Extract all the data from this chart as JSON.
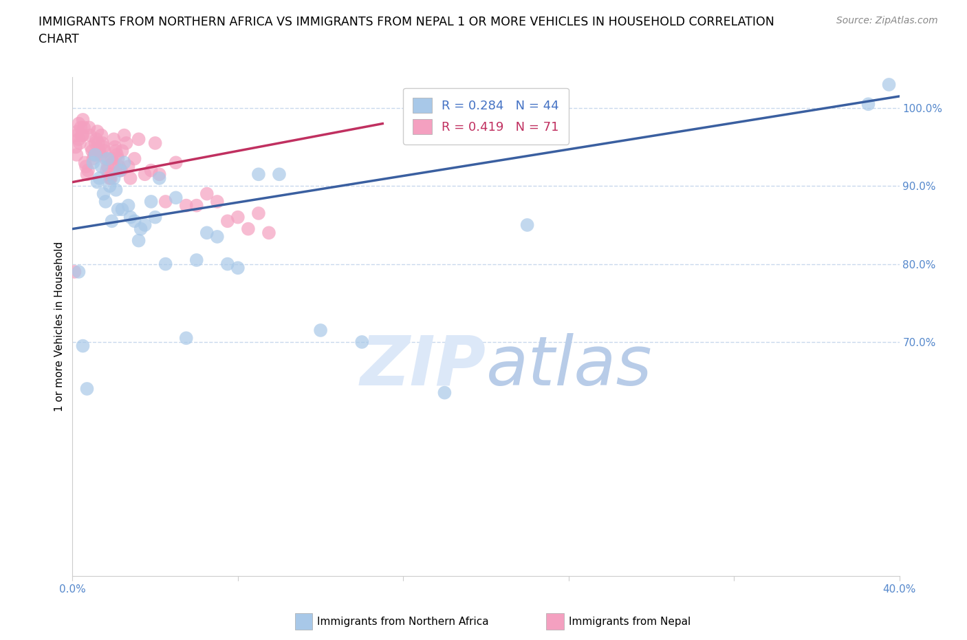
{
  "title_line1": "IMMIGRANTS FROM NORTHERN AFRICA VS IMMIGRANTS FROM NEPAL 1 OR MORE VEHICLES IN HOUSEHOLD CORRELATION",
  "title_line2": "CHART",
  "source": "Source: ZipAtlas.com",
  "ylabel": "1 or more Vehicles in Household",
  "xlim": [
    0.0,
    40.0
  ],
  "ylim": [
    40.0,
    104.0
  ],
  "blue_color": "#a8c8e8",
  "pink_color": "#f4a0c0",
  "blue_line_color": "#3a5fa0",
  "pink_line_color": "#c03060",
  "legend_blue_text_color": "#4472c4",
  "legend_pink_text_color": "#c03060",
  "axis_color": "#5588cc",
  "grid_color": "#c8d8ec",
  "watermark_color": "#dce8f8",
  "title_fontsize": 12.5,
  "source_fontsize": 10,
  "ylabel_fontsize": 11,
  "tick_fontsize": 11,
  "legend_fontsize": 13,
  "blue_scatter_x": [
    0.3,
    0.5,
    0.7,
    1.0,
    1.1,
    1.2,
    1.3,
    1.4,
    1.5,
    1.6,
    1.7,
    1.8,
    2.0,
    2.1,
    2.2,
    2.3,
    2.5,
    2.7,
    2.8,
    3.0,
    3.2,
    3.5,
    3.8,
    4.0,
    4.5,
    5.0,
    5.5,
    6.0,
    6.5,
    7.0,
    7.5,
    8.0,
    9.0,
    10.0,
    12.0,
    14.0,
    18.0,
    22.0,
    38.5,
    39.5,
    2.4,
    3.3,
    4.2,
    1.9
  ],
  "blue_scatter_y": [
    79.0,
    69.5,
    64.0,
    93.0,
    94.0,
    90.5,
    91.0,
    92.5,
    89.0,
    88.0,
    93.5,
    90.0,
    91.0,
    89.5,
    87.0,
    92.0,
    93.0,
    87.5,
    86.0,
    85.5,
    83.0,
    85.0,
    88.0,
    86.0,
    80.0,
    88.5,
    70.5,
    80.5,
    84.0,
    83.5,
    80.0,
    79.5,
    91.5,
    91.5,
    71.5,
    70.0,
    63.5,
    85.0,
    100.5,
    103.0,
    87.0,
    84.5,
    91.0,
    85.5
  ],
  "pink_scatter_x": [
    0.1,
    0.2,
    0.2,
    0.3,
    0.3,
    0.4,
    0.5,
    0.5,
    0.6,
    0.7,
    0.8,
    0.9,
    1.0,
    1.1,
    1.2,
    1.3,
    1.4,
    1.5,
    1.6,
    1.7,
    1.8,
    1.9,
    2.0,
    2.1,
    2.2,
    2.3,
    2.4,
    2.5,
    2.6,
    2.7,
    2.8,
    3.0,
    3.2,
    3.5,
    3.8,
    4.0,
    4.2,
    4.5,
    5.0,
    5.5,
    6.0,
    6.5,
    7.0,
    7.5,
    8.0,
    8.5,
    9.0,
    9.5,
    0.15,
    0.25,
    0.35,
    0.45,
    0.55,
    0.65,
    0.75,
    0.85,
    0.95,
    1.05,
    1.15,
    1.25,
    1.35,
    1.45,
    1.55,
    1.65,
    1.75,
    1.85,
    1.95,
    2.05,
    2.15,
    2.25,
    2.35
  ],
  "pink_scatter_y": [
    79.0,
    94.0,
    96.5,
    96.0,
    98.0,
    97.5,
    98.5,
    96.5,
    93.0,
    91.5,
    97.5,
    95.0,
    93.5,
    95.5,
    97.0,
    94.5,
    96.5,
    95.0,
    93.5,
    92.5,
    91.0,
    93.5,
    96.0,
    94.5,
    93.5,
    92.0,
    94.5,
    96.5,
    95.5,
    92.5,
    91.0,
    93.5,
    96.0,
    91.5,
    92.0,
    95.5,
    91.5,
    88.0,
    93.0,
    87.5,
    87.5,
    89.0,
    88.0,
    85.5,
    86.0,
    84.5,
    86.5,
    84.0,
    95.0,
    97.0,
    95.5,
    96.5,
    97.5,
    92.5,
    92.0,
    96.5,
    94.5,
    94.0,
    96.0,
    95.5,
    94.0,
    95.5,
    94.5,
    92.0,
    91.5,
    91.0,
    93.0,
    95.0,
    94.0,
    92.5,
    92.0
  ],
  "blue_trendline_x": [
    0.0,
    40.0
  ],
  "blue_trendline_y": [
    84.5,
    101.5
  ],
  "pink_trendline_x": [
    0.0,
    15.0
  ],
  "pink_trendline_y": [
    90.5,
    98.0
  ],
  "right_yticks": [
    70.0,
    80.0,
    90.0,
    100.0
  ],
  "right_ytick_labels": [
    "70.0%",
    "80.0%",
    "90.0%",
    "100.0%"
  ],
  "xtick_positions": [
    0.0,
    8.0,
    16.0,
    24.0,
    32.0,
    40.0
  ],
  "xtick_labels": [
    "0.0%",
    "",
    "",
    "",
    "",
    "40.0%"
  ],
  "legend_blue_r": "R = 0.284",
  "legend_blue_n": "N = 44",
  "legend_pink_r": "R = 0.419",
  "legend_pink_n": "N = 71",
  "bottom_label_blue": "Immigrants from Northern Africa",
  "bottom_label_pink": "Immigrants from Nepal"
}
